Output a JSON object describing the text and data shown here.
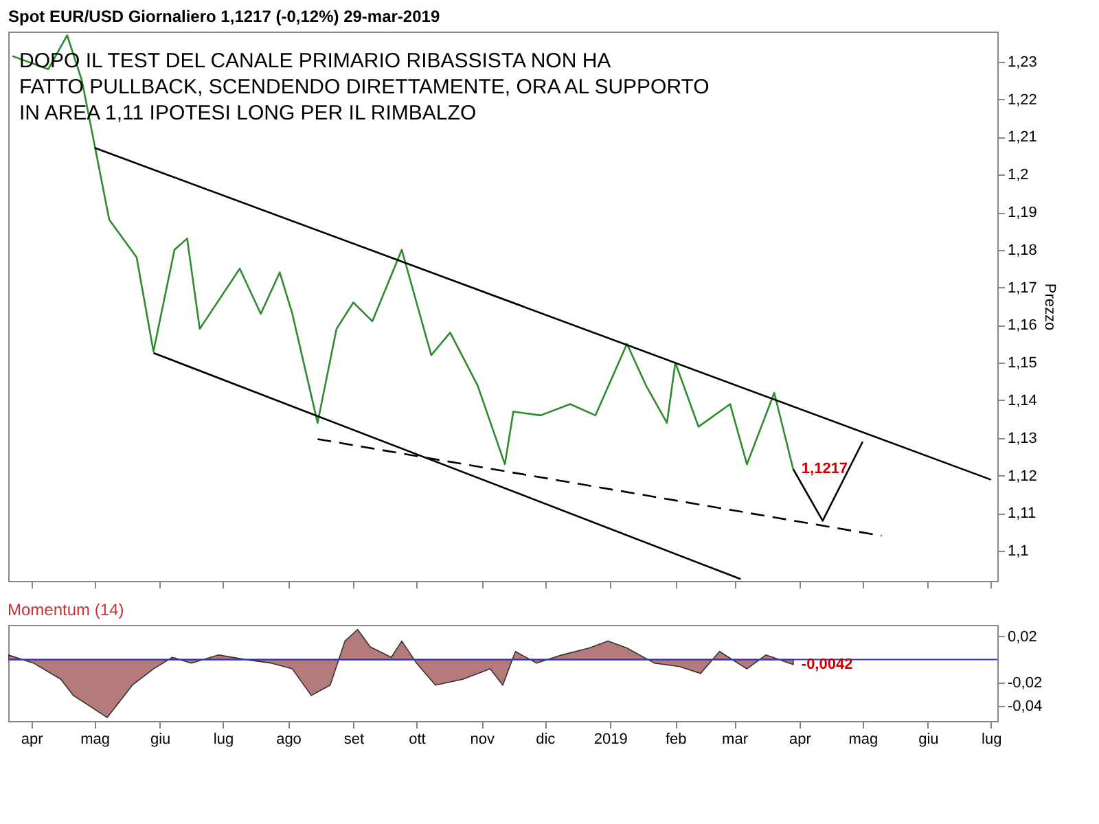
{
  "chart_data": [
    {
      "type": "line",
      "title": "Spot EUR/USD   Giornaliero   1,1217 (-0,12%)   29-mar-2019",
      "ylabel": "Prezzo",
      "tick_labels": "y",
      "grid": false,
      "legend": false,
      "marker": "none",
      "annotations": [
        "DOPO IL TEST DEL CANALE PRIMARIO RIBASSISTA NON HA",
        "FATTO PULLBACK, SCENDENDO DIRETTAMENTE, ORA AL SUPPORTO",
        "IN AREA 1,11 IPOTESI LONG PER IL RIMBALZO",
        {
          "text": "1,1217",
          "x": "2019-03-29",
          "y": 1.1217
        }
      ],
      "xlim": [
        "2018-03-21",
        "2019-07-04"
      ],
      "xticks": [
        {
          "value": "2018-04-01",
          "label": null
        },
        {
          "value": "2018-05-01",
          "label": null
        },
        {
          "value": "2018-06-01",
          "label": null
        },
        {
          "value": "2018-07-01",
          "label": null
        },
        {
          "value": "2018-08-01",
          "label": null
        },
        {
          "value": "2018-09-01",
          "label": null
        },
        {
          "value": "2018-10-01",
          "label": null
        },
        {
          "value": "2018-11-01",
          "label": null
        },
        {
          "value": "2018-12-01",
          "label": null
        },
        {
          "value": "2019-01-01",
          "label": null
        },
        {
          "value": "2019-02-01",
          "label": null
        },
        {
          "value": "2019-03-01",
          "label": null
        },
        {
          "value": "2019-04-01",
          "label": null
        },
        {
          "value": "2019-05-01",
          "label": null
        },
        {
          "value": "2019-06-01",
          "label": null
        },
        {
          "value": "2019-07-01",
          "label": null
        }
      ],
      "ylim": [
        1.092,
        1.238
      ],
      "yticks": [
        {
          "value": 1.1,
          "label": "1,1"
        },
        {
          "value": 1.11,
          "label": "1,11"
        },
        {
          "value": 1.12,
          "label": "1,12"
        },
        {
          "value": 1.13,
          "label": "1,13"
        },
        {
          "value": 1.14,
          "label": "1,14"
        },
        {
          "value": 1.15,
          "label": "1,15"
        },
        {
          "value": 1.16,
          "label": "1,16"
        },
        {
          "value": 1.17,
          "label": "1,17"
        },
        {
          "value": 1.18,
          "label": "1,18"
        },
        {
          "value": 1.19,
          "label": "1,19"
        },
        {
          "value": 1.2,
          "label": "1,2"
        },
        {
          "value": 1.21,
          "label": "1,21"
        },
        {
          "value": 1.22,
          "label": "1,22"
        },
        {
          "value": 1.23,
          "label": "1,23"
        }
      ],
      "series": [
        {
          "color": "#2e8b2e",
          "line_style": "solid",
          "x": [
            "2018-03-23",
            "2018-04-09",
            "2018-04-18",
            "2018-04-25",
            "2018-05-08",
            "2018-05-21",
            "2018-05-29",
            "2018-06-08",
            "2018-06-14",
            "2018-06-20",
            "2018-07-09",
            "2018-07-19",
            "2018-07-28",
            "2018-08-03",
            "2018-08-15",
            "2018-08-24",
            "2018-09-01",
            "2018-09-10",
            "2018-09-24",
            "2018-10-01",
            "2018-10-08",
            "2018-10-17",
            "2018-10-30",
            "2018-11-12",
            "2018-11-16",
            "2018-11-29",
            "2018-12-13",
            "2018-12-25",
            "2019-01-09",
            "2019-01-18",
            "2019-01-28",
            "2019-02-01",
            "2019-02-12",
            "2019-02-27",
            "2019-03-07",
            "2019-03-20",
            "2019-03-29"
          ],
          "values": [
            1.2315,
            1.228,
            1.237,
            1.225,
            1.188,
            1.178,
            1.153,
            1.18,
            1.183,
            1.159,
            1.175,
            1.163,
            1.174,
            1.163,
            1.134,
            1.159,
            1.166,
            1.161,
            1.18,
            1.166,
            1.152,
            1.158,
            1.144,
            1.123,
            1.137,
            1.136,
            1.139,
            1.136,
            1.155,
            1.144,
            1.134,
            1.15,
            1.133,
            1.139,
            1.123,
            1.142,
            1.1217
          ]
        },
        {
          "color": "#000000",
          "line_style": "solid",
          "x": [
            "2018-05-01",
            "2019-07-01"
          ],
          "values": [
            1.2071,
            1.1189
          ]
        },
        {
          "color": "#000000",
          "line_style": "solid",
          "x": [
            "2018-05-29",
            "2019-03-04"
          ],
          "values": [
            1.1526,
            1.0925
          ]
        },
        {
          "color": "#000000",
          "line_style": "dashed",
          "x": [
            "2018-08-15",
            "2019-05-10"
          ],
          "values": [
            1.1297,
            1.104
          ]
        },
        {
          "color": "#000000",
          "line_style": "solid",
          "x": [
            "2019-03-29",
            "2019-04-12",
            "2019-05-01"
          ],
          "values": [
            1.1217,
            1.108,
            1.129
          ]
        }
      ]
    },
    {
      "type": "area",
      "title": "Momentum (14)",
      "grid": false,
      "legend": false,
      "annotations": [
        {
          "text": "-0,0042",
          "x": "2019-03-29",
          "y": -0.0042
        }
      ],
      "xlim": [
        "2018-03-21",
        "2019-07-04"
      ],
      "xticks": [
        {
          "value": "2018-04-01",
          "label": "apr"
        },
        {
          "value": "2018-05-01",
          "label": "mag"
        },
        {
          "value": "2018-06-01",
          "label": "giu"
        },
        {
          "value": "2018-07-01",
          "label": "lug"
        },
        {
          "value": "2018-08-01",
          "label": "ago"
        },
        {
          "value": "2018-09-01",
          "label": "set"
        },
        {
          "value": "2018-10-01",
          "label": "ott"
        },
        {
          "value": "2018-11-01",
          "label": "nov"
        },
        {
          "value": "2018-12-01",
          "label": "dic"
        },
        {
          "value": "2019-01-01",
          "label": "2019"
        },
        {
          "value": "2019-02-01",
          "label": "feb"
        },
        {
          "value": "2019-03-01",
          "label": "mar"
        },
        {
          "value": "2019-04-01",
          "label": "apr"
        },
        {
          "value": "2019-05-01",
          "label": "mag"
        },
        {
          "value": "2019-06-01",
          "label": "giu"
        },
        {
          "value": "2019-07-01",
          "label": "lug"
        }
      ],
      "ylim": [
        -0.053,
        0.03
      ],
      "yticks": [
        {
          "value": -0.04,
          "label": "-0,04"
        },
        {
          "value": -0.02,
          "label": "-0,02"
        },
        {
          "value": 0.02,
          "label": "0,02"
        }
      ],
      "ref_lines": [
        {
          "axis": "y",
          "value": 0,
          "color": "#3333cc"
        }
      ],
      "series": [
        {
          "color": "#a86464",
          "x": [
            "2018-03-21",
            "2018-04-02",
            "2018-04-15",
            "2018-04-21",
            "2018-05-07",
            "2018-05-19",
            "2018-05-29",
            "2018-06-07",
            "2018-06-16",
            "2018-06-29",
            "2018-07-12",
            "2018-07-24",
            "2018-08-03",
            "2018-08-12",
            "2018-08-21",
            "2018-08-28",
            "2018-09-03",
            "2018-09-09",
            "2018-09-19",
            "2018-09-24",
            "2018-10-01",
            "2018-10-10",
            "2018-10-23",
            "2018-11-05",
            "2018-11-11",
            "2018-11-17",
            "2018-11-27",
            "2018-12-09",
            "2018-12-22",
            "2018-12-31",
            "2019-01-09",
            "2019-01-22",
            "2019-02-03",
            "2019-02-13",
            "2019-02-22",
            "2019-03-07",
            "2019-03-16",
            "2019-03-29"
          ],
          "values": [
            0.004,
            -0.003,
            -0.017,
            -0.031,
            -0.05,
            -0.022,
            -0.008,
            0.002,
            -0.003,
            0.004,
            0,
            -0.003,
            -0.008,
            -0.031,
            -0.022,
            0.016,
            0.026,
            0.011,
            0.002,
            0.016,
            -0.003,
            -0.022,
            -0.017,
            -0.008,
            -0.022,
            0.007,
            -0.003,
            0.004,
            0.01,
            0.016,
            0.01,
            -0.003,
            -0.006,
            -0.012,
            0.007,
            -0.008,
            0.004,
            -0.0042
          ]
        }
      ]
    }
  ]
}
